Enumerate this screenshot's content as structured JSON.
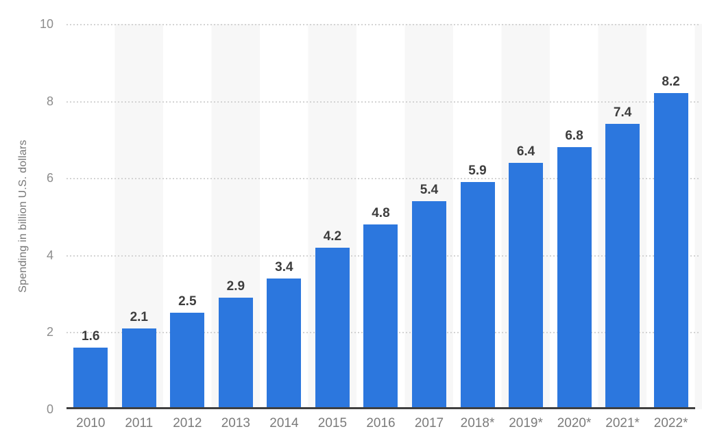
{
  "chart_data": {
    "type": "bar",
    "title": "",
    "xlabel": "",
    "ylabel": "Spending in billion U.S. dollars",
    "categories": [
      "2010",
      "2011",
      "2012",
      "2013",
      "2014",
      "2015",
      "2016",
      "2017",
      "2018*",
      "2019*",
      "2020*",
      "2021*",
      "2022*"
    ],
    "values": [
      1.6,
      2.1,
      2.5,
      2.9,
      3.4,
      4.2,
      4.8,
      5.4,
      5.9,
      6.4,
      6.8,
      7.4,
      8.2
    ],
    "value_labels": [
      "1.6",
      "2.1",
      "2.5",
      "2.9",
      "3.4",
      "4.2",
      "4.8",
      "5.4",
      "5.9",
      "6.4",
      "6.8",
      "7.4",
      "8.2"
    ],
    "ylim": [
      0,
      10
    ],
    "yticks": [
      0,
      2,
      4,
      6,
      8,
      10
    ],
    "grid": "horizontal-dotted",
    "legend": "none",
    "colors": {
      "bar": "#2c77de",
      "band": "#f7f7f7",
      "gridline": "#d3d3d3",
      "baseline": "#3f3f3f",
      "value_label": "#3d3d3d",
      "axis_label": "#7b7b7b",
      "tick_label": "#8c8c8c",
      "ylabel_text": "#757575",
      "background": "#ffffff"
    }
  }
}
